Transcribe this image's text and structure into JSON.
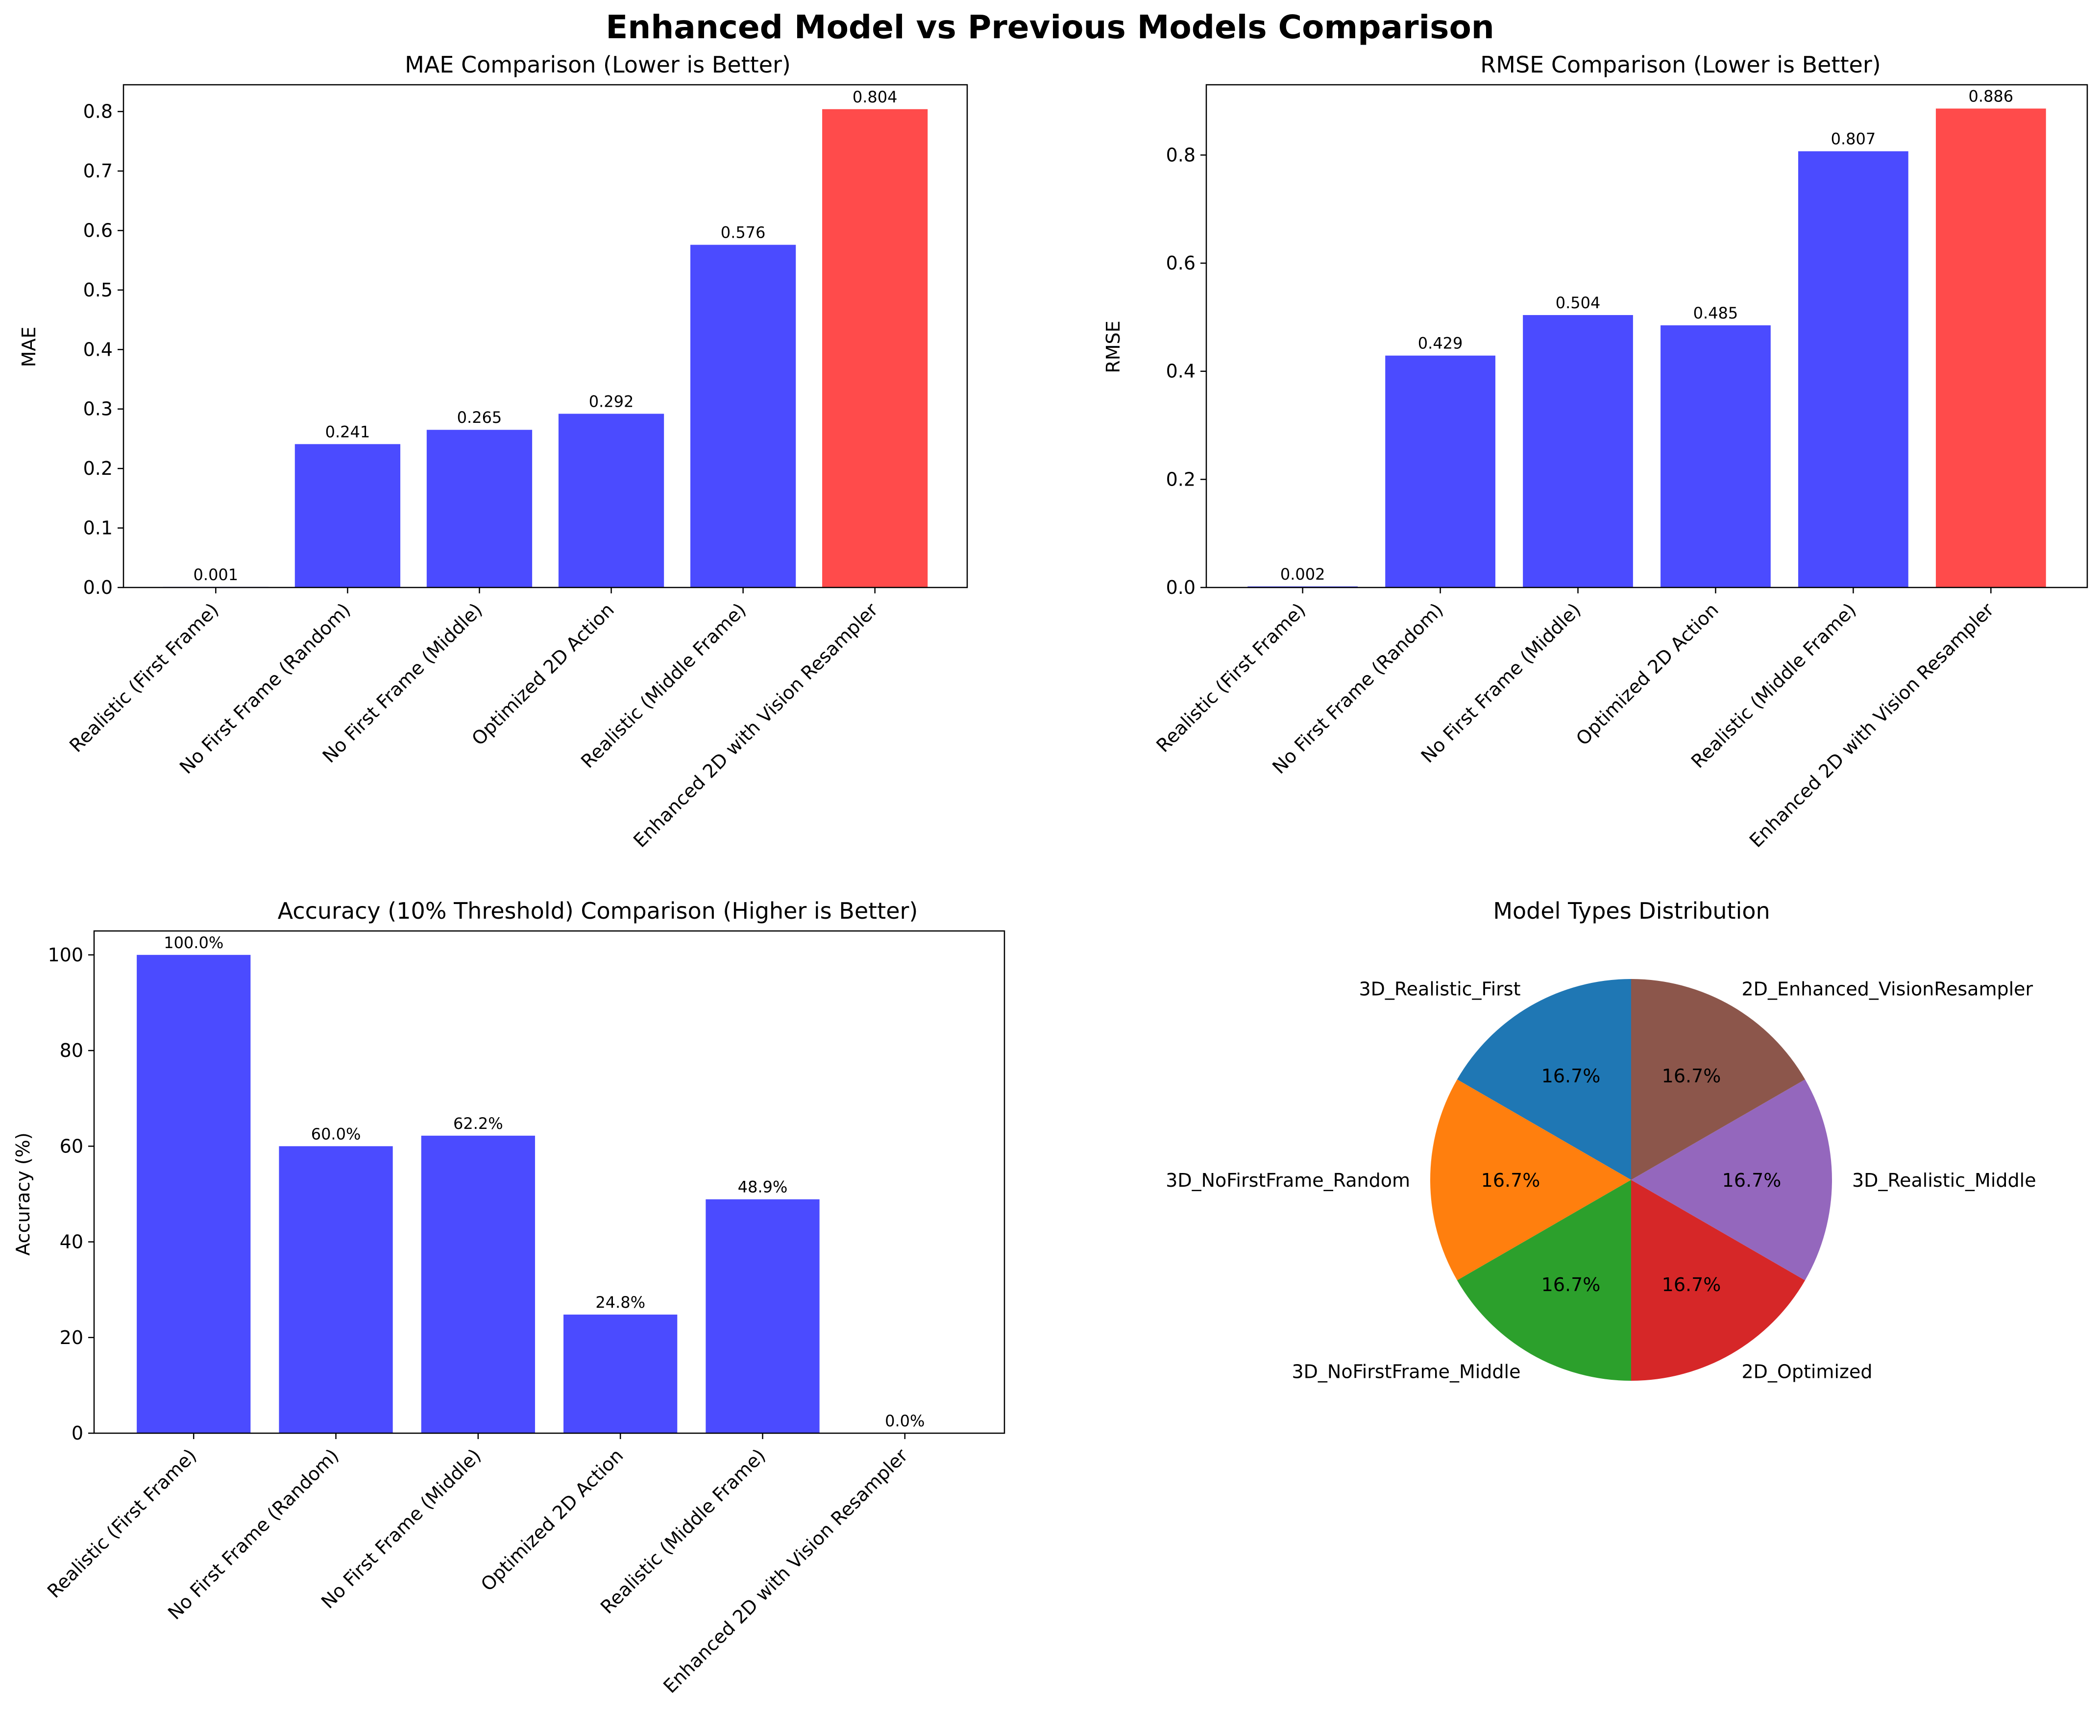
{
  "figure": {
    "title": "Enhanced Model vs Previous Models Comparison"
  },
  "colors": {
    "baseline": "#4b4bff",
    "enhanced": "#ff4b4b",
    "pie": [
      "#1f77b4",
      "#ff7f0e",
      "#2ca02c",
      "#d62728",
      "#9467bd",
      "#8c564b"
    ]
  },
  "chart_data": [
    {
      "id": "mae",
      "type": "bar",
      "title": "MAE Comparison (Lower is Better)",
      "xlabel": "",
      "ylabel": "MAE",
      "categories": [
        "Realistic (First Frame)",
        "No First Frame (Random)",
        "No First Frame (Middle)",
        "Optimized 2D Action",
        "Realistic (Middle Frame)",
        "Enhanced 2D with Vision Resampler"
      ],
      "values": [
        0.001,
        0.241,
        0.265,
        0.292,
        0.576,
        0.804
      ],
      "data_labels": [
        "0.001",
        "0.241",
        "0.265",
        "0.292",
        "0.576",
        "0.804"
      ],
      "highlight_index": 5,
      "ylim": [
        0,
        0.845
      ],
      "yticks": [
        0.0,
        0.1,
        0.2,
        0.3,
        0.4,
        0.5,
        0.6,
        0.7,
        0.8
      ],
      "ytick_labels": [
        "0.0",
        "0.1",
        "0.2",
        "0.3",
        "0.4",
        "0.5",
        "0.6",
        "0.7",
        "0.8"
      ]
    },
    {
      "id": "rmse",
      "type": "bar",
      "title": "RMSE Comparison (Lower is Better)",
      "xlabel": "",
      "ylabel": "RMSE",
      "categories": [
        "Realistic (First Frame)",
        "No First Frame (Random)",
        "No First Frame (Middle)",
        "Optimized 2D Action",
        "Realistic (Middle Frame)",
        "Enhanced 2D with Vision Resampler"
      ],
      "values": [
        0.002,
        0.429,
        0.504,
        0.485,
        0.807,
        0.886
      ],
      "data_labels": [
        "0.002",
        "0.429",
        "0.504",
        "0.485",
        "0.807",
        "0.886"
      ],
      "highlight_index": 5,
      "ylim": [
        0,
        0.93
      ],
      "yticks": [
        0.0,
        0.2,
        0.4,
        0.6,
        0.8
      ],
      "ytick_labels": [
        "0.0",
        "0.2",
        "0.4",
        "0.6",
        "0.8"
      ]
    },
    {
      "id": "acc",
      "type": "bar",
      "title": "Accuracy (10% Threshold) Comparison (Higher is Better)",
      "xlabel": "",
      "ylabel": "Accuracy (%)",
      "categories": [
        "Realistic (First Frame)",
        "No First Frame (Random)",
        "No First Frame (Middle)",
        "Optimized 2D Action",
        "Realistic (Middle Frame)",
        "Enhanced 2D with Vision Resampler"
      ],
      "values": [
        100.0,
        60.0,
        62.2,
        24.8,
        48.9,
        0.0
      ],
      "data_labels": [
        "100.0%",
        "60.0%",
        "62.2%",
        "24.8%",
        "48.9%",
        "0.0%"
      ],
      "highlight_index": -1,
      "ylim": [
        0,
        105
      ],
      "yticks": [
        0,
        20,
        40,
        60,
        80,
        100
      ],
      "ytick_labels": [
        "0",
        "20",
        "40",
        "60",
        "80",
        "100"
      ]
    },
    {
      "id": "pie",
      "type": "pie",
      "title": "Model Types Distribution",
      "labels": [
        "3D_Realistic_First",
        "3D_NoFirstFrame_Random",
        "3D_NoFirstFrame_Middle",
        "2D_Optimized",
        "3D_Realistic_Middle",
        "2D_Enhanced_VisionResampler"
      ],
      "values": [
        1,
        1,
        1,
        1,
        1,
        1
      ],
      "pct_labels": [
        "16.7%",
        "16.7%",
        "16.7%",
        "16.7%",
        "16.7%",
        "16.7%"
      ],
      "start_angle_deg": 90,
      "direction": "counterclockwise"
    }
  ]
}
